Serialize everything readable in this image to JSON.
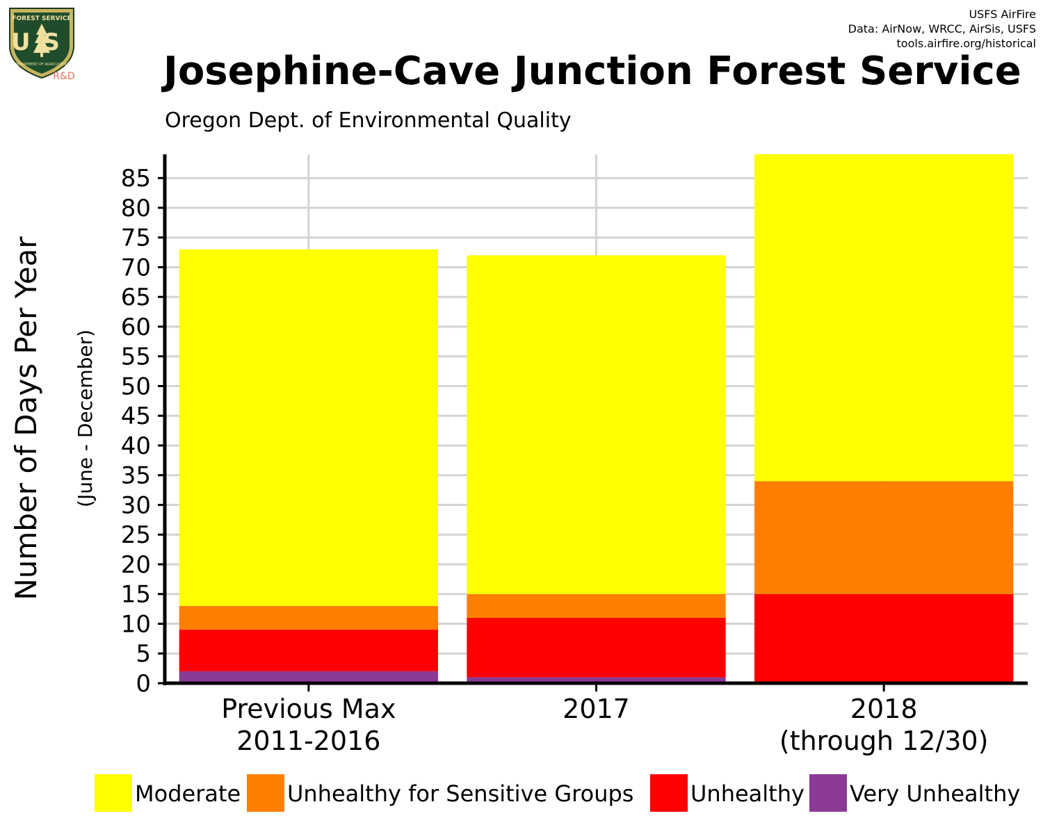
{
  "header": {
    "credit_lines": [
      "USFS AirFire",
      "Data: AirNow, WRCC, AirSis, USFS",
      "tools.airfire.org/historical"
    ],
    "logo": {
      "icon": "usfs-shield-logo",
      "top_text": "FOREST SERVICE",
      "letters": "US",
      "bottom_text": "DEPARTMENT OF AGRICULTURE",
      "rd_label": "R&D"
    }
  },
  "chart_data": {
    "type": "bar",
    "stacked": true,
    "title": "Josephine-Cave Junction Forest Service",
    "subtitle": "Oregon Dept. of Environmental Quality",
    "ylabel": "Number of Days Per Year",
    "ylabel_sub": "(June - December)",
    "xlabel": "",
    "categories": [
      [
        "Previous Max",
        "2011-2016"
      ],
      [
        "2017"
      ],
      [
        "2018",
        "(through 12/30)"
      ]
    ],
    "ylim": [
      0,
      89
    ],
    "yticks": [
      0,
      5,
      10,
      15,
      20,
      25,
      30,
      35,
      40,
      45,
      50,
      55,
      60,
      65,
      70,
      75,
      80,
      85
    ],
    "grid": true,
    "legend_position": "bottom",
    "series": [
      {
        "name": "Very Unhealthy",
        "color": "#8B3A96",
        "values": [
          2,
          1,
          0
        ]
      },
      {
        "name": "Unhealthy",
        "color": "#FF0000",
        "values": [
          7,
          10,
          15
        ]
      },
      {
        "name": "Unhealthy for Sensitive Groups",
        "color": "#FF7E00",
        "values": [
          4,
          4,
          19
        ]
      },
      {
        "name": "Moderate",
        "color": "#FFFF00",
        "values": [
          60,
          57,
          55
        ]
      }
    ],
    "legend_order": [
      "Moderate",
      "Unhealthy for Sensitive Groups",
      "Unhealthy",
      "Very Unhealthy"
    ]
  }
}
